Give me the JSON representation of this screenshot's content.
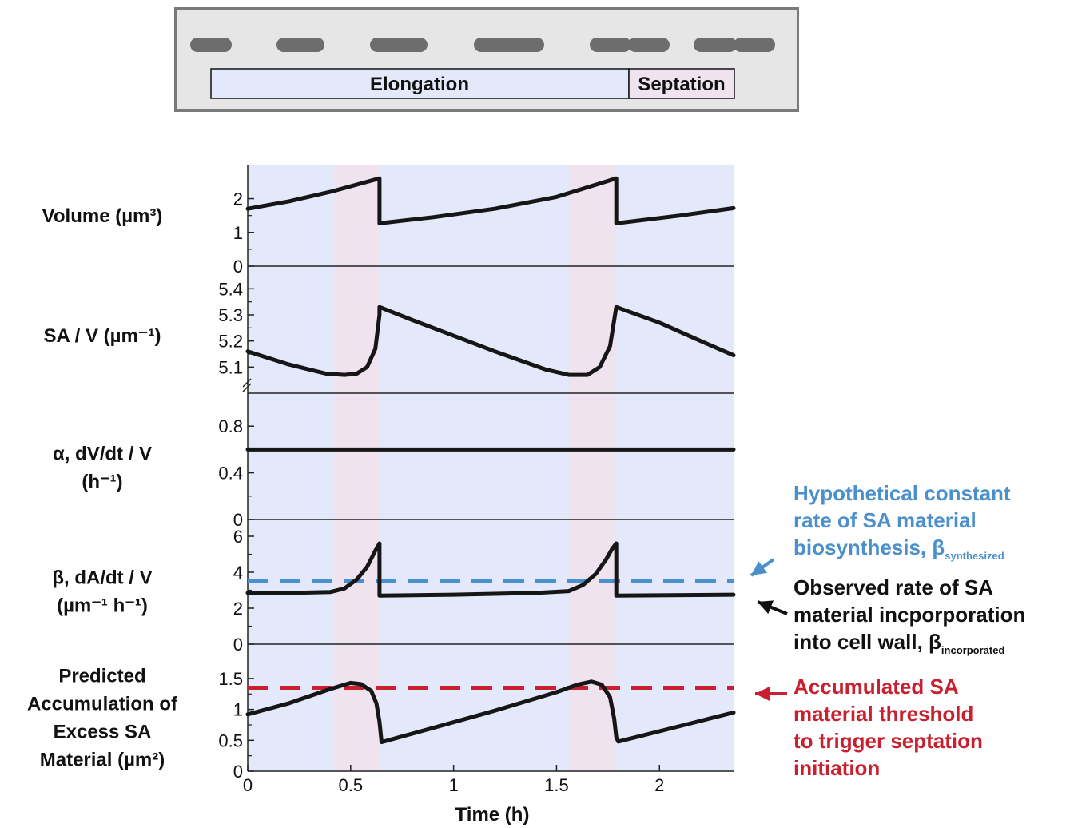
{
  "colors": {
    "elongation": "#e3e8fb",
    "septation": "#eee3ee",
    "header_bg": "#e6e6e6",
    "header_border": "#7a7a7a",
    "cell": "#6d6d6d",
    "curve": "#161616",
    "blue": "#4b90cc",
    "red": "#c8202f"
  },
  "header": {
    "elongation_label": "Elongation",
    "septation_label": "Septation"
  },
  "chart_data": {
    "type": "line",
    "xlabel": "Time (h)",
    "xlim": [
      0,
      2.36
    ],
    "xticks": [
      "0",
      "0.5",
      "1",
      "1.5",
      "2"
    ],
    "xtick_values": [
      0,
      0.5,
      1,
      1.5,
      2
    ],
    "septation_intervals": [
      [
        0.42,
        0.64
      ],
      [
        1.56,
        1.79
      ]
    ],
    "panels": [
      {
        "ylabel_lines": [
          "Volume (µm³)"
        ],
        "ylim": [
          0,
          2.7
        ],
        "yticks": [
          "0",
          "1",
          "2"
        ],
        "ytick_values": [
          0,
          1,
          2
        ],
        "series": [
          {
            "x": [
              0,
              0.2,
              0.4,
              0.64,
              0.64,
              0.9,
              1.2,
              1.5,
              1.79,
              1.79,
              2.1,
              2.36
            ],
            "y": [
              1.7,
              1.92,
              2.2,
              2.6,
              1.27,
              1.45,
              1.7,
              2.05,
              2.6,
              1.27,
              1.5,
              1.72
            ]
          }
        ]
      },
      {
        "ylabel_lines": [
          "SA / V (µm⁻¹)"
        ],
        "ylim": [
          5.0,
          5.45
        ],
        "axis_break": true,
        "yticks": [
          "5.1",
          "5.2",
          "5.3",
          "5.4"
        ],
        "ytick_values": [
          5.1,
          5.2,
          5.3,
          5.4
        ],
        "series": [
          {
            "x": [
              0,
              0.2,
              0.38,
              0.47,
              0.53,
              0.58,
              0.62,
              0.64,
              0.64,
              0.8,
              1.0,
              1.2,
              1.45,
              1.56,
              1.65,
              1.71,
              1.76,
              1.79,
              1.79,
              2.0,
              2.2,
              2.36
            ],
            "y": [
              5.16,
              5.11,
              5.075,
              5.07,
              5.075,
              5.1,
              5.17,
              5.3,
              5.33,
              5.28,
              5.22,
              5.16,
              5.09,
              5.07,
              5.07,
              5.1,
              5.18,
              5.33,
              5.33,
              5.27,
              5.2,
              5.145
            ]
          }
        ]
      },
      {
        "ylabel_lines": [
          "α, dV/dt / V",
          "(h⁻¹)"
        ],
        "ylim": [
          0,
          1.0
        ],
        "yticks": [
          "0",
          "0.4",
          "0.8"
        ],
        "ytick_values": [
          0,
          0.4,
          0.8
        ],
        "series": [
          {
            "x": [
              0,
              2.36
            ],
            "y": [
              0.6,
              0.6
            ]
          }
        ]
      },
      {
        "ylabel_lines": [
          "β, dA/dt / V",
          "(µm⁻¹ h⁻¹)"
        ],
        "ylim": [
          0,
          6.4
        ],
        "yticks": [
          "0",
          "2",
          "4",
          "6"
        ],
        "ytick_values": [
          0,
          2,
          4,
          6
        ],
        "reference_line": {
          "y": 3.5,
          "color": "blue"
        },
        "series": [
          {
            "x": [
              0,
              0.2,
              0.4,
              0.47,
              0.53,
              0.58,
              0.62,
              0.64,
              0.64,
              1.0,
              1.4,
              1.56,
              1.63,
              1.69,
              1.74,
              1.77,
              1.79,
              1.79,
              2.36
            ],
            "y": [
              2.85,
              2.85,
              2.9,
              3.1,
              3.6,
              4.3,
              5.2,
              5.6,
              2.7,
              2.75,
              2.85,
              2.95,
              3.3,
              3.9,
              4.7,
              5.3,
              5.6,
              2.7,
              2.75
            ]
          }
        ]
      },
      {
        "ylabel_lines": [
          "Predicted",
          "Accumulation of",
          "Excess SA",
          "Material (µm²)"
        ],
        "ylim": [
          0,
          1.9
        ],
        "yticks": [
          "0",
          "0.5",
          "1",
          "1.5"
        ],
        "ytick_values": [
          0,
          0.5,
          1,
          1.5
        ],
        "reference_line": {
          "y": 1.35,
          "color": "red"
        },
        "series": [
          {
            "x": [
              0,
              0.2,
              0.4,
              0.5,
              0.55,
              0.6,
              0.625,
              0.64,
              0.65,
              0.9,
              1.2,
              1.5,
              1.6,
              1.67,
              1.72,
              1.76,
              1.78,
              1.79,
              1.8,
              2.1,
              2.36
            ],
            "y": [
              0.92,
              1.1,
              1.33,
              1.43,
              1.41,
              1.3,
              1.1,
              0.8,
              0.47,
              0.7,
              0.98,
              1.28,
              1.4,
              1.45,
              1.4,
              1.2,
              0.85,
              0.55,
              0.48,
              0.73,
              0.95
            ]
          }
        ]
      }
    ]
  },
  "annotations": [
    {
      "color": "blue",
      "lines": [
        "Hypothetical constant",
        "rate of SA material",
        "biosynthesis, β"
      ],
      "subscript": "synthesized"
    },
    {
      "color": "black",
      "lines": [
        "Observed rate of SA",
        "material incporporation",
        "into cell wall, β"
      ],
      "subscript": "incorporated"
    },
    {
      "color": "red",
      "lines": [
        "Accumulated SA",
        "material threshold",
        "to trigger septation",
        "initiation"
      ],
      "subscript": ""
    }
  ]
}
